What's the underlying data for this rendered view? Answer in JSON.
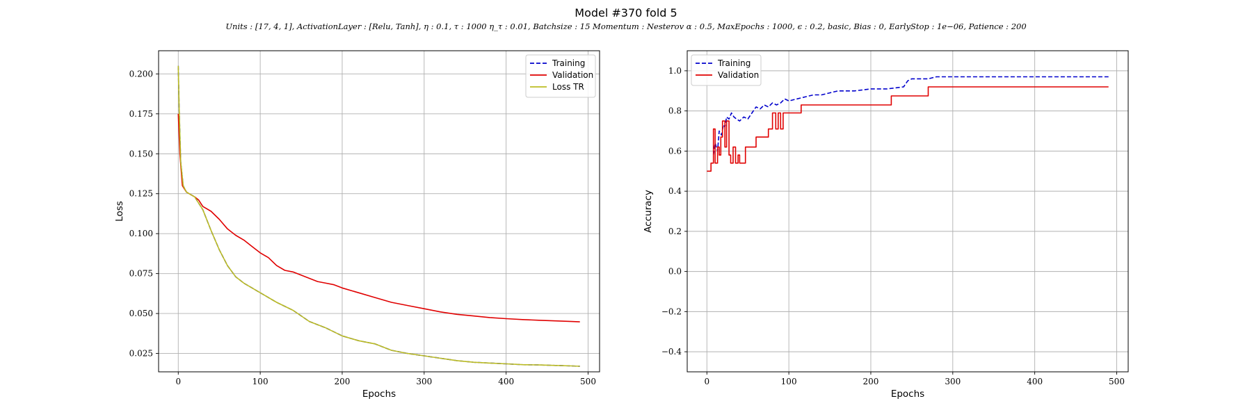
{
  "figure": {
    "title": "Model #370 fold 5",
    "subtitle": "Units : [17, 4, 1], ActivationLayer : [Relu, Tanh], η : 0.1, τ : 1000 η_τ : 0.01, Batchsize : 15 Momentum : Nesterov α : 0.5, MaxEpochs : 1000, ϵ : 0.2, basic, Bias : 0, EarlyStop : 1e−06, Patience : 200"
  },
  "colors": {
    "training": "#0000cc",
    "validation": "#e00000",
    "loss_tr": "#bcbd22",
    "grid": "#b0b0b0"
  },
  "chart_data": [
    {
      "type": "line",
      "title": "",
      "xlabel": "Epochs",
      "ylabel": "Loss",
      "xlim": [
        -24,
        514
      ],
      "ylim": [
        0.0135,
        0.2145
      ],
      "xticks": [
        0,
        100,
        200,
        300,
        400,
        500
      ],
      "xtick_labels": [
        "0",
        "100",
        "200",
        "300",
        "400",
        "500"
      ],
      "yticks": [
        0.025,
        0.05,
        0.075,
        0.1,
        0.125,
        0.15,
        0.175,
        0.2
      ],
      "ytick_labels": [
        "0.025",
        "0.050",
        "0.075",
        "0.100",
        "0.125",
        "0.150",
        "0.175",
        "0.200"
      ],
      "grid": true,
      "legend": "top-right",
      "series": [
        {
          "name": "Training",
          "style": "dashed",
          "color": "#0000cc",
          "points": [
            [
              0,
              0.205
            ],
            [
              1,
              0.18
            ],
            [
              3,
              0.145
            ],
            [
              6,
              0.13
            ],
            [
              10,
              0.126
            ],
            [
              20,
              0.123
            ],
            [
              30,
              0.115
            ],
            [
              40,
              0.102
            ],
            [
              50,
              0.09
            ],
            [
              60,
              0.08
            ],
            [
              70,
              0.073
            ],
            [
              80,
              0.069
            ],
            [
              100,
              0.063
            ],
            [
              120,
              0.057
            ],
            [
              140,
              0.052
            ],
            [
              160,
              0.045
            ],
            [
              180,
              0.041
            ],
            [
              200,
              0.036
            ],
            [
              220,
              0.033
            ],
            [
              240,
              0.031
            ],
            [
              260,
              0.027
            ],
            [
              280,
              0.025
            ],
            [
              300,
              0.0235
            ],
            [
              320,
              0.022
            ],
            [
              340,
              0.0205
            ],
            [
              360,
              0.0195
            ],
            [
              380,
              0.019
            ],
            [
              400,
              0.0185
            ],
            [
              420,
              0.018
            ],
            [
              440,
              0.0178
            ],
            [
              460,
              0.0175
            ],
            [
              480,
              0.0172
            ],
            [
              490,
              0.017
            ]
          ]
        },
        {
          "name": "Validation",
          "style": "solid",
          "color": "#e00000",
          "points": [
            [
              0,
              0.175
            ],
            [
              2,
              0.15
            ],
            [
              5,
              0.13
            ],
            [
              10,
              0.126
            ],
            [
              20,
              0.123
            ],
            [
              25,
              0.121
            ],
            [
              30,
              0.117
            ],
            [
              40,
              0.114
            ],
            [
              50,
              0.109
            ],
            [
              60,
              0.103
            ],
            [
              70,
              0.099
            ],
            [
              80,
              0.096
            ],
            [
              90,
              0.092
            ],
            [
              100,
              0.088
            ],
            [
              110,
              0.085
            ],
            [
              120,
              0.08
            ],
            [
              130,
              0.077
            ],
            [
              140,
              0.076
            ],
            [
              150,
              0.074
            ],
            [
              160,
              0.072
            ],
            [
              170,
              0.07
            ],
            [
              180,
              0.069
            ],
            [
              190,
              0.068
            ],
            [
              200,
              0.066
            ],
            [
              220,
              0.063
            ],
            [
              240,
              0.06
            ],
            [
              260,
              0.057
            ],
            [
              280,
              0.055
            ],
            [
              300,
              0.053
            ],
            [
              320,
              0.051
            ],
            [
              340,
              0.0495
            ],
            [
              360,
              0.0485
            ],
            [
              380,
              0.0475
            ],
            [
              400,
              0.0468
            ],
            [
              420,
              0.0462
            ],
            [
              440,
              0.0458
            ],
            [
              460,
              0.0454
            ],
            [
              480,
              0.045
            ],
            [
              490,
              0.0448
            ]
          ]
        },
        {
          "name": "Loss TR",
          "style": "solid",
          "color": "#bcbd22",
          "points": [
            [
              0,
              0.205
            ],
            [
              1,
              0.18
            ],
            [
              3,
              0.145
            ],
            [
              6,
              0.13
            ],
            [
              10,
              0.126
            ],
            [
              20,
              0.123
            ],
            [
              30,
              0.115
            ],
            [
              40,
              0.102
            ],
            [
              50,
              0.09
            ],
            [
              60,
              0.08
            ],
            [
              70,
              0.073
            ],
            [
              80,
              0.069
            ],
            [
              100,
              0.063
            ],
            [
              120,
              0.057
            ],
            [
              140,
              0.052
            ],
            [
              160,
              0.045
            ],
            [
              180,
              0.041
            ],
            [
              200,
              0.036
            ],
            [
              220,
              0.033
            ],
            [
              240,
              0.031
            ],
            [
              260,
              0.027
            ],
            [
              280,
              0.025
            ],
            [
              300,
              0.0235
            ],
            [
              320,
              0.022
            ],
            [
              340,
              0.0205
            ],
            [
              360,
              0.0195
            ],
            [
              380,
              0.019
            ],
            [
              400,
              0.0185
            ],
            [
              420,
              0.018
            ],
            [
              440,
              0.0178
            ],
            [
              460,
              0.0175
            ],
            [
              480,
              0.0172
            ],
            [
              490,
              0.017
            ]
          ]
        }
      ]
    },
    {
      "type": "line",
      "title": "",
      "xlabel": "Epochs",
      "ylabel": "Accuracy",
      "xlim": [
        -24,
        514
      ],
      "ylim": [
        -0.5,
        1.1
      ],
      "xticks": [
        0,
        100,
        200,
        300,
        400,
        500
      ],
      "xtick_labels": [
        "0",
        "100",
        "200",
        "300",
        "400",
        "500"
      ],
      "yticks": [
        -0.4,
        -0.2,
        0.0,
        0.2,
        0.4,
        0.6,
        0.8,
        1.0
      ],
      "ytick_labels": [
        "−0.4",
        "−0.2",
        "0.0",
        "0.2",
        "0.4",
        "0.6",
        "0.8",
        "1.0"
      ],
      "grid": true,
      "legend": "top-left",
      "series": [
        {
          "name": "Training",
          "style": "dashed",
          "color": "#0000cc",
          "points": [
            [
              8,
              0.58
            ],
            [
              10,
              0.64
            ],
            [
              13,
              0.6
            ],
            [
              15,
              0.7
            ],
            [
              18,
              0.68
            ],
            [
              20,
              0.73
            ],
            [
              22,
              0.72
            ],
            [
              24,
              0.77
            ],
            [
              27,
              0.76
            ],
            [
              30,
              0.79
            ],
            [
              33,
              0.77
            ],
            [
              36,
              0.76
            ],
            [
              40,
              0.75
            ],
            [
              45,
              0.77
            ],
            [
              50,
              0.76
            ],
            [
              55,
              0.79
            ],
            [
              60,
              0.82
            ],
            [
              65,
              0.81
            ],
            [
              70,
              0.83
            ],
            [
              75,
              0.82
            ],
            [
              80,
              0.84
            ],
            [
              85,
              0.83
            ],
            [
              90,
              0.84
            ],
            [
              95,
              0.86
            ],
            [
              100,
              0.85
            ],
            [
              110,
              0.86
            ],
            [
              120,
              0.87
            ],
            [
              130,
              0.88
            ],
            [
              140,
              0.88
            ],
            [
              150,
              0.89
            ],
            [
              160,
              0.9
            ],
            [
              180,
              0.9
            ],
            [
              200,
              0.91
            ],
            [
              220,
              0.91
            ],
            [
              240,
              0.92
            ],
            [
              245,
              0.95
            ],
            [
              250,
              0.96
            ],
            [
              270,
              0.96
            ],
            [
              280,
              0.97
            ],
            [
              300,
              0.97
            ],
            [
              400,
              0.97
            ],
            [
              490,
              0.97
            ]
          ]
        },
        {
          "name": "Validation",
          "style": "solid",
          "color": "#e00000",
          "points": [
            [
              0,
              0.5
            ],
            [
              5,
              0.5
            ],
            [
              5,
              0.54
            ],
            [
              8,
              0.54
            ],
            [
              8,
              0.71
            ],
            [
              10,
              0.71
            ],
            [
              10,
              0.54
            ],
            [
              13,
              0.54
            ],
            [
              13,
              0.62
            ],
            [
              15,
              0.62
            ],
            [
              15,
              0.58
            ],
            [
              17,
              0.58
            ],
            [
              17,
              0.67
            ],
            [
              19,
              0.67
            ],
            [
              19,
              0.75
            ],
            [
              22,
              0.75
            ],
            [
              22,
              0.62
            ],
            [
              24,
              0.62
            ],
            [
              24,
              0.75
            ],
            [
              27,
              0.75
            ],
            [
              27,
              0.58
            ],
            [
              29,
              0.58
            ],
            [
              29,
              0.54
            ],
            [
              32,
              0.54
            ],
            [
              32,
              0.62
            ],
            [
              35,
              0.62
            ],
            [
              35,
              0.54
            ],
            [
              38,
              0.54
            ],
            [
              38,
              0.58
            ],
            [
              40,
              0.58
            ],
            [
              40,
              0.54
            ],
            [
              47,
              0.54
            ],
            [
              47,
              0.62
            ],
            [
              60,
              0.62
            ],
            [
              60,
              0.67
            ],
            [
              75,
              0.67
            ],
            [
              75,
              0.71
            ],
            [
              80,
              0.71
            ],
            [
              80,
              0.79
            ],
            [
              84,
              0.79
            ],
            [
              84,
              0.71
            ],
            [
              87,
              0.71
            ],
            [
              87,
              0.79
            ],
            [
              90,
              0.79
            ],
            [
              90,
              0.71
            ],
            [
              93,
              0.71
            ],
            [
              93,
              0.79
            ],
            [
              115,
              0.79
            ],
            [
              115,
              0.83
            ],
            [
              225,
              0.83
            ],
            [
              225,
              0.875
            ],
            [
              270,
              0.875
            ],
            [
              270,
              0.92
            ],
            [
              490,
              0.92
            ]
          ]
        }
      ]
    }
  ]
}
